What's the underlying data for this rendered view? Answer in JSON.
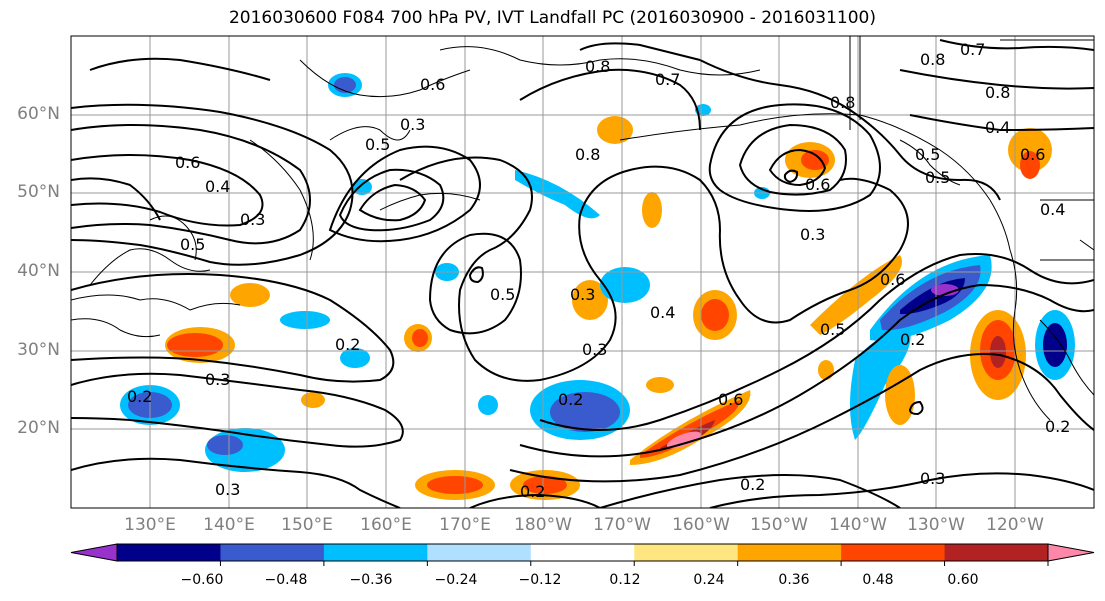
{
  "title": "2016030600 F084 700 hPa PV, IVT Landfall PC (2016030900 - 2016031100)",
  "lat_labels": [
    "60°N",
    "50°N",
    "40°N",
    "30°N",
    "20°N"
  ],
  "lon_labels": [
    "130°E",
    "140°E",
    "150°E",
    "160°E",
    "170°E",
    "180°W",
    "170°W",
    "160°W",
    "150°W",
    "140°W",
    "130°W",
    "120°W"
  ],
  "colorbar": {
    "ticks": [
      "−0.60",
      "−0.48",
      "−0.36",
      "−0.24",
      "−0.12",
      "0.12",
      "0.24",
      "0.36",
      "0.48",
      "0.60"
    ],
    "colors": [
      "#9932cc",
      "#00008b",
      "#3a5bcd",
      "#00bfff",
      "#b0e0ff",
      "#ffffff",
      "#ffe680",
      "#ffa500",
      "#ff4500",
      "#b22222",
      "#ff88aa"
    ]
  },
  "contour_labels": [
    "0.7",
    "0.8",
    "0.8",
    "0.4",
    "0.6",
    "0.8",
    "0.5",
    "0.5",
    "0.6",
    "0.4",
    "0.3",
    "0.5",
    "0.8",
    "0.7",
    "0.8",
    "0.6",
    "0.3",
    "0.5",
    "0.3",
    "0.5",
    "0.4",
    "0.3",
    "0.2",
    "0.6",
    "0.5",
    "0.6",
    "0.2",
    "0.4",
    "0.6",
    "0.2",
    "0.2",
    "0.3",
    "0.2",
    "0.3",
    "0.3",
    "0.2",
    "0.3",
    "0.2"
  ]
}
